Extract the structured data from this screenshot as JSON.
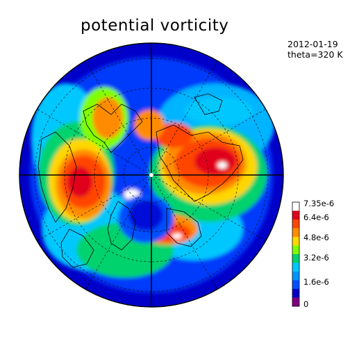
{
  "title": "potential vorticity",
  "date": "2012-01-19",
  "level": "theta=320 K",
  "colorbar": {
    "labels": [
      "7.35e-6",
      "6.4e-6",
      "4.8e-6",
      "3.2e-6",
      "1.6e-6",
      "0"
    ],
    "colors": [
      "#ffffff",
      "#e0001e",
      "#ff4500",
      "#ff8c00",
      "#ffd700",
      "#7fff00",
      "#00d26e",
      "#00c8ff",
      "#0096ff",
      "#0050ff",
      "#0000c8",
      "#800080"
    ]
  },
  "map": {
    "projection": "north-polar-stereographic",
    "ocean_color": "#0010d8"
  }
}
